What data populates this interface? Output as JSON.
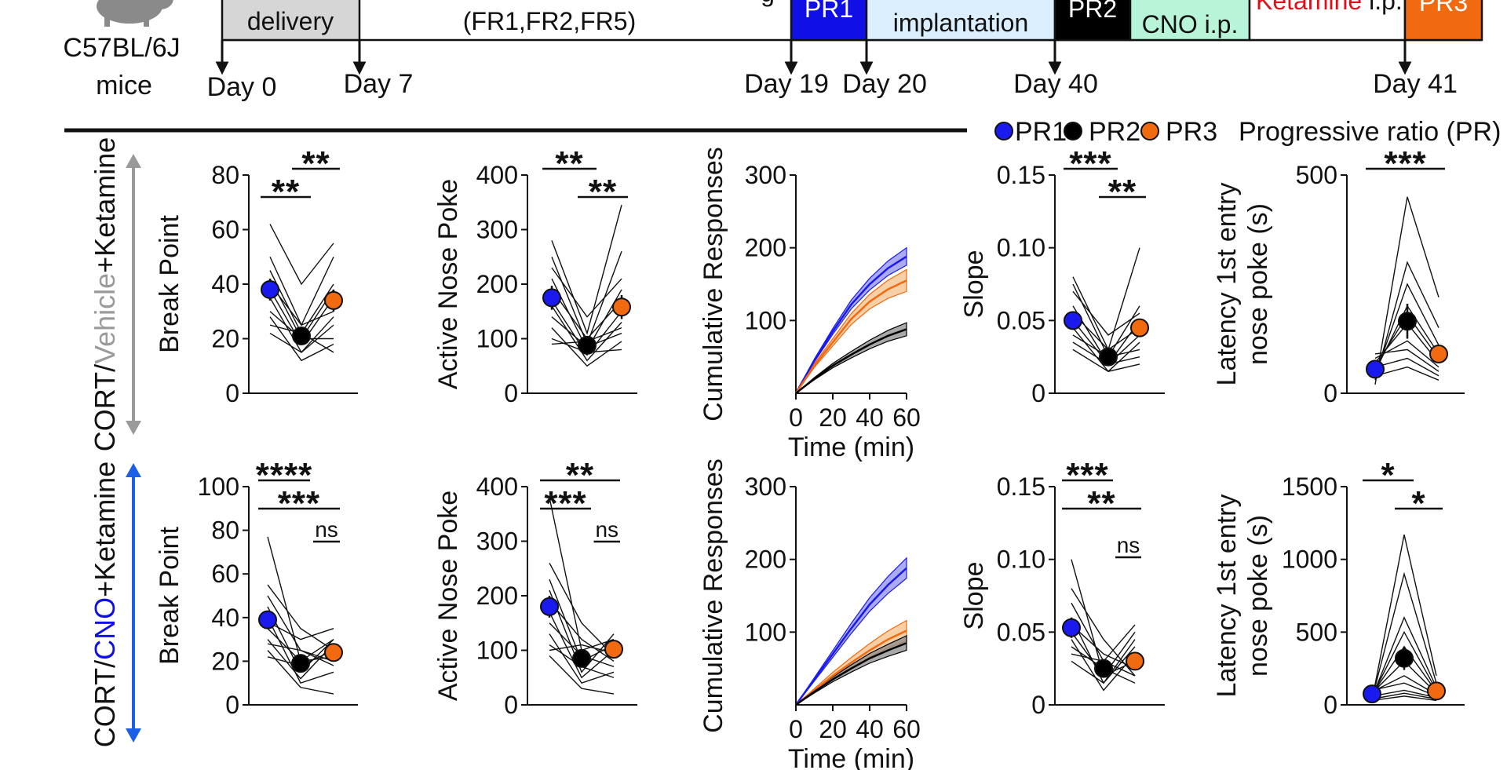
{
  "timeline": {
    "strain": "C57BL/6J",
    "species": "mice",
    "boxes": [
      {
        "key": "delivery",
        "text": "delivery",
        "fill": "#d6d6d6",
        "color": "#111111"
      },
      {
        "key": "fr",
        "text": "(FR1,FR2,FR5)",
        "fill": "#ffffff",
        "color": "#111111"
      },
      {
        "key": "pr1",
        "text": "PR1",
        "fill": "#1010e6",
        "color": "#ffffff"
      },
      {
        "key": "implant",
        "text": "implantation",
        "fill": "#dcefff",
        "color": "#111111"
      },
      {
        "key": "pr2",
        "text": "PR2",
        "fill": "#000000",
        "color": "#ffffff"
      },
      {
        "key": "vehcno",
        "text": "CNO i.p.",
        "fill": "#b8f5d8",
        "color": "#111111"
      },
      {
        "key": "ket",
        "text": "Ketamine",
        "text2": " i.p.",
        "fill": "#ffffff",
        "color": "#e0101a"
      },
      {
        "key": "pr3",
        "text": "PR3",
        "fill": "#f26a10",
        "color": "#ffffff"
      }
    ],
    "days": [
      "Day 0",
      "Day 7",
      "Day 19",
      "Day 20",
      "Day 40",
      "Day 41"
    ]
  },
  "legend": {
    "items": [
      {
        "label": "PR1",
        "color": "#1a1aee"
      },
      {
        "label": "PR2",
        "color": "#000000"
      },
      {
        "label": "PR3",
        "color": "#f26a10"
      }
    ],
    "title": "Progressive ratio (PR)"
  },
  "rows": [
    {
      "prefix": "CORT/",
      "mid": "Vehicle",
      "suffix": "+Ketamine",
      "mid_color": "#9a9a9a",
      "arrow_color": "#9a9a9a"
    },
    {
      "prefix": "CORT/",
      "mid": "CNO",
      "suffix": "+Ketamine",
      "mid_color": "#1010e6",
      "arrow_color": "#1a5fe6"
    }
  ],
  "colors": {
    "pr1": "#1a1aee",
    "pr2": "#000000",
    "pr3": "#f26a10",
    "pr1_band": "#8f8ff0",
    "pr3_band": "#f5c08a",
    "pr2_band": "#8c8c8c"
  },
  "chart_data": [
    {
      "id": "r1-breakpoint",
      "type": "scatter",
      "row": "CORT/Vehicle+Ketamine",
      "ylabel": "Break Point",
      "ylim": [
        0,
        80
      ],
      "yticks": [
        "0",
        "20",
        "40",
        "60",
        "80"
      ],
      "categories": [
        "PR1",
        "PR2",
        "PR3"
      ],
      "means": [
        38,
        21,
        34
      ],
      "errors": [
        4,
        3,
        4
      ],
      "individual": [
        [
          62,
          40,
          55
        ],
        [
          50,
          25,
          50
        ],
        [
          45,
          22,
          40
        ],
        [
          42,
          20,
          38
        ],
        [
          40,
          25,
          30
        ],
        [
          38,
          18,
          35
        ],
        [
          35,
          15,
          25
        ],
        [
          30,
          20,
          20
        ],
        [
          28,
          12,
          18
        ],
        [
          25,
          22,
          15
        ],
        [
          22,
          15,
          28
        ]
      ],
      "significance": [
        {
          "label": "**",
          "a": 0,
          "b": 1,
          "level": 1
        },
        {
          "label": "**",
          "a": 1,
          "b": 2,
          "level": 0
        }
      ]
    },
    {
      "id": "r1-nosepoke",
      "type": "scatter",
      "row": "CORT/Vehicle+Ketamine",
      "ylabel": "Active Nose Poke",
      "ylim": [
        0,
        400
      ],
      "yticks": [
        "0",
        "100",
        "200",
        "300",
        "400"
      ],
      "categories": [
        "PR1",
        "PR2",
        "PR3"
      ],
      "means": [
        175,
        88,
        158
      ],
      "errors": [
        22,
        12,
        22
      ],
      "individual": [
        [
          280,
          110,
          345
        ],
        [
          250,
          90,
          260
        ],
        [
          230,
          140,
          210
        ],
        [
          210,
          80,
          190
        ],
        [
          190,
          100,
          170
        ],
        [
          170,
          70,
          150
        ],
        [
          160,
          60,
          130
        ],
        [
          140,
          85,
          110
        ],
        [
          120,
          50,
          95
        ],
        [
          100,
          75,
          80
        ],
        [
          90,
          95,
          120
        ]
      ],
      "significance": [
        {
          "label": "**",
          "a": 0,
          "b": 1,
          "level": 0
        },
        {
          "label": "**",
          "a": 1,
          "b": 2,
          "level": 1
        }
      ]
    },
    {
      "id": "r1-cumulative",
      "type": "line",
      "row": "CORT/Vehicle+Ketamine",
      "ylabel": "Cumulative Responses",
      "xlabel": "Time  (min)",
      "xlim": [
        0,
        60
      ],
      "ylim": [
        0,
        300
      ],
      "xticks": [
        "0",
        "20",
        "40",
        "60"
      ],
      "yticks": [
        "100",
        "200",
        "300"
      ],
      "x": [
        0,
        10,
        20,
        30,
        40,
        50,
        60
      ],
      "series": [
        {
          "name": "PR1",
          "values": [
            0,
            45,
            85,
            122,
            150,
            172,
            188
          ],
          "sem": 12
        },
        {
          "name": "PR3",
          "values": [
            0,
            38,
            70,
            102,
            126,
            143,
            155
          ],
          "sem": 15
        },
        {
          "name": "PR2",
          "values": [
            0,
            20,
            38,
            53,
            67,
            79,
            88
          ],
          "sem": 9
        }
      ]
    },
    {
      "id": "r1-slope",
      "type": "scatter",
      "row": "CORT/Vehicle+Ketamine",
      "ylabel": "Slope",
      "ylim": [
        0,
        0.15
      ],
      "yticks": [
        "0",
        "0.05",
        "0.10",
        "0.15"
      ],
      "categories": [
        "PR1",
        "PR2",
        "PR3"
      ],
      "means": [
        0.05,
        0.025,
        0.045
      ],
      "errors": [
        0.006,
        0.004,
        0.006
      ],
      "individual": [
        [
          0.08,
          0.03,
          0.1
        ],
        [
          0.075,
          0.025,
          0.06
        ],
        [
          0.07,
          0.04,
          0.055
        ],
        [
          0.06,
          0.02,
          0.05
        ],
        [
          0.055,
          0.03,
          0.045
        ],
        [
          0.05,
          0.02,
          0.04
        ],
        [
          0.045,
          0.015,
          0.035
        ],
        [
          0.04,
          0.025,
          0.03
        ],
        [
          0.035,
          0.02,
          0.025
        ],
        [
          0.03,
          0.015,
          0.02
        ]
      ],
      "significance": [
        {
          "label": "***",
          "a": 0,
          "b": 1,
          "level": 0
        },
        {
          "label": "**",
          "a": 1,
          "b": 2,
          "level": 1
        }
      ]
    },
    {
      "id": "r1-latency",
      "type": "scatter",
      "row": "CORT/Vehicle+Ketamine",
      "ylabel": "Latency 1st entry",
      "ylabel2": "nose poke (s)",
      "ylim": [
        0,
        500
      ],
      "yticks": [
        "0",
        "500"
      ],
      "categories": [
        "PR1",
        "PR2",
        "PR3"
      ],
      "means": [
        55,
        165,
        90
      ],
      "errors": [
        10,
        40,
        15
      ],
      "individual": [
        [
          20,
          450,
          220
        ],
        [
          30,
          300,
          150
        ],
        [
          40,
          250,
          110
        ],
        [
          50,
          200,
          90
        ],
        [
          60,
          180,
          80
        ],
        [
          70,
          160,
          70
        ],
        [
          80,
          120,
          60
        ],
        [
          90,
          100,
          50
        ],
        [
          60,
          80,
          40
        ],
        [
          40,
          60,
          30
        ]
      ],
      "significance": [
        {
          "label": "***",
          "a": 0,
          "b": 2,
          "level": 0
        }
      ]
    },
    {
      "id": "r2-breakpoint",
      "type": "scatter",
      "row": "CORT/CNO+Ketamine",
      "ylabel": "Break Point",
      "ylim": [
        0,
        100
      ],
      "yticks": [
        "0",
        "20",
        "40",
        "60",
        "80",
        "100"
      ],
      "categories": [
        "PR1",
        "PR2",
        "PR3"
      ],
      "means": [
        39,
        19,
        24
      ],
      "errors": [
        4,
        3,
        3
      ],
      "individual": [
        [
          77,
          20,
          30
        ],
        [
          55,
          35,
          25
        ],
        [
          50,
          25,
          20
        ],
        [
          45,
          15,
          30
        ],
        [
          40,
          10,
          15
        ],
        [
          38,
          30,
          35
        ],
        [
          35,
          20,
          22
        ],
        [
          30,
          12,
          28
        ],
        [
          28,
          25,
          18
        ],
        [
          25,
          8,
          5
        ],
        [
          22,
          18,
          25
        ]
      ],
      "significance": [
        {
          "label": "****",
          "a": 0,
          "b": 1,
          "level": 0
        },
        {
          "label": "***",
          "a": 0,
          "b": 2,
          "level": 1
        },
        {
          "label": "ns",
          "a": 1.5,
          "b": 2,
          "level": 2
        }
      ]
    },
    {
      "id": "r2-nosepoke",
      "type": "scatter",
      "row": "CORT/CNO+Ketamine",
      "ylabel": "Active Nose Poke",
      "ylim": [
        0,
        400
      ],
      "yticks": [
        "0",
        "100",
        "200",
        "300",
        "400"
      ],
      "categories": [
        "PR1",
        "PR2",
        "PR3"
      ],
      "means": [
        180,
        85,
        102
      ],
      "errors": [
        20,
        12,
        14
      ],
      "individual": [
        [
          380,
          100,
          120
        ],
        [
          260,
          150,
          90
        ],
        [
          230,
          80,
          110
        ],
        [
          210,
          60,
          130
        ],
        [
          190,
          120,
          80
        ],
        [
          170,
          50,
          100
        ],
        [
          150,
          90,
          70
        ],
        [
          130,
          40,
          60
        ],
        [
          110,
          70,
          50
        ],
        [
          100,
          110,
          95
        ],
        [
          90,
          30,
          20
        ]
      ],
      "significance": [
        {
          "label": "**",
          "a": 0,
          "b": 2,
          "level": 0
        },
        {
          "label": "***",
          "a": 0,
          "b": 1,
          "level": 1
        },
        {
          "label": "ns",
          "a": 1.5,
          "b": 2,
          "level": 2
        }
      ]
    },
    {
      "id": "r2-cumulative",
      "type": "line",
      "row": "CORT/CNO+Ketamine",
      "ylabel": "Cumulative Responses",
      "xlabel": "Time  (min)",
      "xlim": [
        0,
        60
      ],
      "ylim": [
        0,
        300
      ],
      "xticks": [
        "0",
        "20",
        "40",
        "60"
      ],
      "yticks": [
        "100",
        "200",
        "300"
      ],
      "x": [
        0,
        10,
        20,
        30,
        40,
        50,
        60
      ],
      "series": [
        {
          "name": "PR1",
          "values": [
            0,
            35,
            70,
            105,
            138,
            165,
            188
          ],
          "sem": 14
        },
        {
          "name": "PR3",
          "values": [
            0,
            20,
            40,
            58,
            75,
            90,
            102
          ],
          "sem": 14
        },
        {
          "name": "PR2",
          "values": [
            0,
            18,
            35,
            50,
            64,
            75,
            85
          ],
          "sem": 10
        }
      ]
    },
    {
      "id": "r2-slope",
      "type": "scatter",
      "row": "CORT/CNO+Ketamine",
      "ylabel": "Slope",
      "ylim": [
        0,
        0.15
      ],
      "yticks": [
        "0",
        "0.05",
        "0.10",
        "0.15"
      ],
      "categories": [
        "PR1",
        "PR2",
        "PR3"
      ],
      "means": [
        0.053,
        0.025,
        0.03
      ],
      "errors": [
        0.007,
        0.004,
        0.005
      ],
      "individual": [
        [
          0.1,
          0.02,
          0.03
        ],
        [
          0.08,
          0.045,
          0.02
        ],
        [
          0.07,
          0.03,
          0.055
        ],
        [
          0.06,
          0.015,
          0.04
        ],
        [
          0.055,
          0.035,
          0.025
        ],
        [
          0.05,
          0.02,
          0.05
        ],
        [
          0.045,
          0.01,
          0.035
        ],
        [
          0.04,
          0.025,
          0.015
        ],
        [
          0.035,
          0.03,
          0.02
        ],
        [
          0.03,
          0.015,
          0.045
        ]
      ],
      "significance": [
        {
          "label": "***",
          "a": 0,
          "b": 1,
          "level": 0
        },
        {
          "label": "**",
          "a": 0,
          "b": 2,
          "level": 1
        },
        {
          "label": "ns",
          "a": 1.5,
          "b": 2,
          "level": 2
        }
      ]
    },
    {
      "id": "r2-latency",
      "type": "scatter",
      "row": "CORT/CNO+Ketamine",
      "ylabel": "Latency 1st entry",
      "ylabel2": "nose poke (s)",
      "ylim": [
        0,
        1500
      ],
      "yticks": [
        "0",
        "500",
        "1000",
        "1500"
      ],
      "categories": [
        "PR1",
        "PR2",
        "PR3"
      ],
      "means": [
        75,
        320,
        95
      ],
      "errors": [
        15,
        80,
        15
      ],
      "individual": [
        [
          30,
          1170,
          200
        ],
        [
          40,
          900,
          150
        ],
        [
          50,
          600,
          120
        ],
        [
          60,
          500,
          100
        ],
        [
          70,
          400,
          90
        ],
        [
          80,
          300,
          80
        ],
        [
          90,
          200,
          70
        ],
        [
          100,
          150,
          60
        ],
        [
          60,
          100,
          50
        ],
        [
          40,
          80,
          40
        ],
        [
          30,
          60,
          30
        ]
      ],
      "significance": [
        {
          "label": "*",
          "a": 0,
          "b": 1,
          "level": 0
        },
        {
          "label": "*",
          "a": 1,
          "b": 2,
          "level": 1
        }
      ]
    }
  ]
}
